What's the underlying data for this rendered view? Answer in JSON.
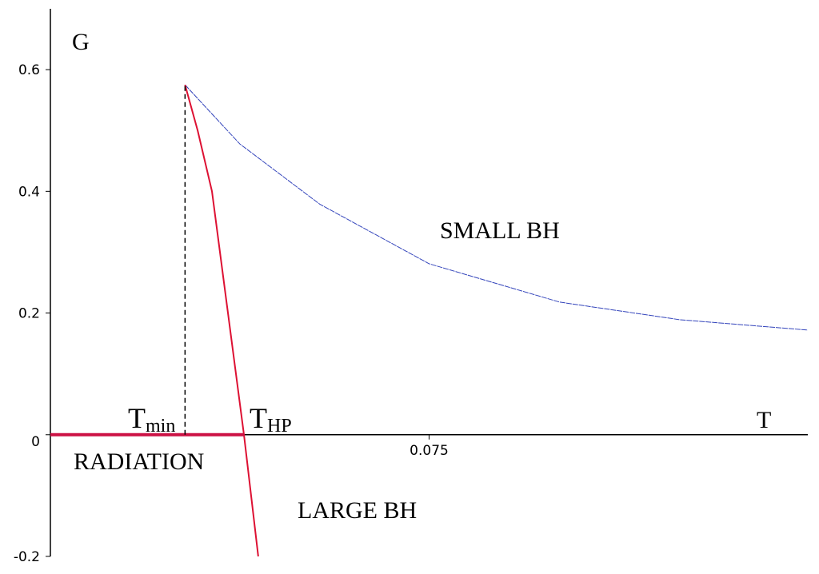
{
  "chart_data": {
    "type": "line",
    "xlim": [
      0.03,
      0.12
    ],
    "ylim": [
      -0.2,
      0.7
    ],
    "xticks": [
      0.075
    ],
    "yticks": [
      0.6,
      0.4,
      0.2,
      0,
      -0.2
    ],
    "x_label": "T",
    "y_label": "G",
    "series": [
      {
        "color": "#3344bb",
        "style": "dashed",
        "x": [
          0.046,
          0.0525,
          0.062,
          0.075,
          0.0905,
          0.1048,
          0.12
        ],
        "values": [
          0.575,
          0.478,
          0.379,
          0.281,
          0.218,
          0.189,
          0.172
        ]
      },
      {
        "color": "#dd1133",
        "style": "solid",
        "x": [
          0.046,
          0.0475,
          0.0492,
          0.0511,
          0.053,
          0.0547
        ],
        "values": [
          0.575,
          0.5,
          0.4,
          0.2,
          0,
          -0.2
        ]
      },
      {
        "color": "#cc1144",
        "style": "thick",
        "x": [
          0.03,
          0.053
        ],
        "values": [
          0,
          0
        ]
      },
      {
        "color": "#000000",
        "style": "dotted",
        "x": [
          0.046,
          0.046
        ],
        "values": [
          0,
          0.575
        ]
      }
    ],
    "annotations": [
      {
        "text": "T",
        "sub": "min"
      },
      {
        "text": "T",
        "sub": "HP"
      },
      {
        "text": "SMALL BH"
      },
      {
        "text": "RADIATION"
      },
      {
        "text": "LARGE BH"
      }
    ]
  }
}
